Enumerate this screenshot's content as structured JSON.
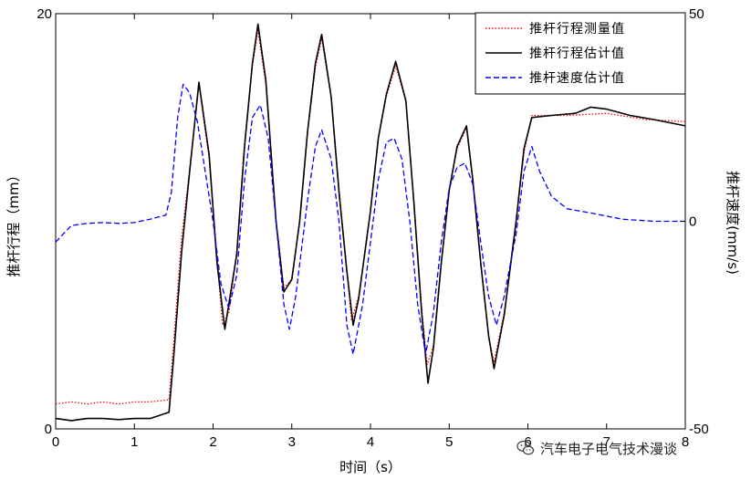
{
  "chart_data": {
    "type": "line",
    "x_label": "时间（s）",
    "y_left_label": "推杆行程（mm）",
    "y_right_label": "推杆速度(mm/s)",
    "x_range": [
      0,
      8
    ],
    "y_left_range": [
      0,
      20
    ],
    "y_right_range": [
      -50,
      50
    ],
    "x_ticks": [
      "0",
      "1",
      "2",
      "3",
      "4",
      "5",
      "6",
      "7",
      "8"
    ],
    "y_left_ticks": [
      "0",
      "20"
    ],
    "y_right_ticks": [
      "-50",
      "0",
      "50"
    ],
    "legend_position": "top-right",
    "grid": false,
    "series": [
      {
        "name": "推杆行程测量值",
        "axis": "left",
        "color": "#ff0000",
        "style": "dotted",
        "points": [
          [
            0,
            1.2
          ],
          [
            0.2,
            1.3
          ],
          [
            0.4,
            1.2
          ],
          [
            0.6,
            1.3
          ],
          [
            0.8,
            1.2
          ],
          [
            1.0,
            1.3
          ],
          [
            1.2,
            1.3
          ],
          [
            1.44,
            1.4
          ],
          [
            1.5,
            4.2
          ],
          [
            1.6,
            9.2
          ],
          [
            1.7,
            12.4
          ],
          [
            1.82,
            16.6
          ],
          [
            1.95,
            13.0
          ],
          [
            2.05,
            8.2
          ],
          [
            2.12,
            5.0
          ],
          [
            2.2,
            5.6
          ],
          [
            2.3,
            8.5
          ],
          [
            2.4,
            13.8
          ],
          [
            2.5,
            17.5
          ],
          [
            2.57,
            19.2
          ],
          [
            2.67,
            16.6
          ],
          [
            2.8,
            10.0
          ],
          [
            2.9,
            6.8
          ],
          [
            3.0,
            7.2
          ],
          [
            3.1,
            10.0
          ],
          [
            3.2,
            14.3
          ],
          [
            3.3,
            17.4
          ],
          [
            3.38,
            18.8
          ],
          [
            3.5,
            16.0
          ],
          [
            3.6,
            11.6
          ],
          [
            3.7,
            7.6
          ],
          [
            3.76,
            5.2
          ],
          [
            3.85,
            6.4
          ],
          [
            4.0,
            10.5
          ],
          [
            4.1,
            14.0
          ],
          [
            4.2,
            16.0
          ],
          [
            4.32,
            17.5
          ],
          [
            4.45,
            15.8
          ],
          [
            4.55,
            11.0
          ],
          [
            4.65,
            5.8
          ],
          [
            4.72,
            3.1
          ],
          [
            4.8,
            4.0
          ],
          [
            4.9,
            8.0
          ],
          [
            5.0,
            11.5
          ],
          [
            5.1,
            13.5
          ],
          [
            5.22,
            14.5
          ],
          [
            5.3,
            12.0
          ],
          [
            5.4,
            8.0
          ],
          [
            5.5,
            4.5
          ],
          [
            5.57,
            3.2
          ],
          [
            5.7,
            5.6
          ],
          [
            5.85,
            10.0
          ],
          [
            5.95,
            13.3
          ],
          [
            6.05,
            15.1
          ],
          [
            6.5,
            15.1
          ],
          [
            7.0,
            15.2
          ],
          [
            7.5,
            14.9
          ],
          [
            8.0,
            14.8
          ]
        ]
      },
      {
        "name": "推杆行程估计值",
        "axis": "left",
        "color": "#000000",
        "style": "solid",
        "points": [
          [
            0,
            0.5
          ],
          [
            0.2,
            0.4
          ],
          [
            0.4,
            0.5
          ],
          [
            0.6,
            0.5
          ],
          [
            0.8,
            0.45
          ],
          [
            1.0,
            0.5
          ],
          [
            1.2,
            0.5
          ],
          [
            1.44,
            0.8
          ],
          [
            1.5,
            3.5
          ],
          [
            1.6,
            8.5
          ],
          [
            1.7,
            12.3
          ],
          [
            1.82,
            16.7
          ],
          [
            1.95,
            13.2
          ],
          [
            2.05,
            8.0
          ],
          [
            2.15,
            4.8
          ],
          [
            2.3,
            8.4
          ],
          [
            2.4,
            13.6
          ],
          [
            2.5,
            17.6
          ],
          [
            2.57,
            19.5
          ],
          [
            2.67,
            16.8
          ],
          [
            2.8,
            10.0
          ],
          [
            2.9,
            6.6
          ],
          [
            3.0,
            7.2
          ],
          [
            3.1,
            10.0
          ],
          [
            3.2,
            14.3
          ],
          [
            3.3,
            17.6
          ],
          [
            3.38,
            19.0
          ],
          [
            3.5,
            16.0
          ],
          [
            3.6,
            11.4
          ],
          [
            3.7,
            7.6
          ],
          [
            3.78,
            5.0
          ],
          [
            3.85,
            6.3
          ],
          [
            4.0,
            10.5
          ],
          [
            4.1,
            14.0
          ],
          [
            4.2,
            16.1
          ],
          [
            4.32,
            17.7
          ],
          [
            4.45,
            15.8
          ],
          [
            4.55,
            11.0
          ],
          [
            4.65,
            5.6
          ],
          [
            4.73,
            2.2
          ],
          [
            4.8,
            3.9
          ],
          [
            4.9,
            8.0
          ],
          [
            5.0,
            11.5
          ],
          [
            5.1,
            13.6
          ],
          [
            5.22,
            14.6
          ],
          [
            5.3,
            12.0
          ],
          [
            5.4,
            8.0
          ],
          [
            5.5,
            4.5
          ],
          [
            5.57,
            2.9
          ],
          [
            5.7,
            5.5
          ],
          [
            5.85,
            10.0
          ],
          [
            5.95,
            13.5
          ],
          [
            6.05,
            15.0
          ],
          [
            6.3,
            15.1
          ],
          [
            6.6,
            15.2
          ],
          [
            6.8,
            15.5
          ],
          [
            7.0,
            15.4
          ],
          [
            7.3,
            15.1
          ],
          [
            7.6,
            14.9
          ],
          [
            8.0,
            14.6
          ]
        ]
      },
      {
        "name": "推杆速度估计值",
        "axis": "right",
        "color": "#0000ff",
        "style": "dashed",
        "points": [
          [
            0,
            -5.0
          ],
          [
            0.1,
            -3.0
          ],
          [
            0.2,
            -1.0
          ],
          [
            0.4,
            -0.5
          ],
          [
            0.6,
            -0.3
          ],
          [
            0.8,
            -0.5
          ],
          [
            1.0,
            -0.3
          ],
          [
            1.2,
            0.5
          ],
          [
            1.4,
            1.5
          ],
          [
            1.47,
            7.0
          ],
          [
            1.55,
            25.0
          ],
          [
            1.62,
            33.0
          ],
          [
            1.7,
            31.0
          ],
          [
            1.8,
            24.0
          ],
          [
            1.9,
            12.0
          ],
          [
            2.0,
            0
          ],
          [
            2.1,
            -15.0
          ],
          [
            2.2,
            -21.0
          ],
          [
            2.3,
            -13.0
          ],
          [
            2.4,
            10.0
          ],
          [
            2.5,
            25.0
          ],
          [
            2.6,
            28.0
          ],
          [
            2.7,
            20.0
          ],
          [
            2.8,
            0
          ],
          [
            2.9,
            -20.0
          ],
          [
            2.97,
            -26.0
          ],
          [
            3.05,
            -18.0
          ],
          [
            3.2,
            5.0
          ],
          [
            3.3,
            18.0
          ],
          [
            3.38,
            22.0
          ],
          [
            3.5,
            15.0
          ],
          [
            3.6,
            0
          ],
          [
            3.7,
            -25.0
          ],
          [
            3.78,
            -32.0
          ],
          [
            3.9,
            -20.0
          ],
          [
            4.0,
            -5.0
          ],
          [
            4.1,
            10.0
          ],
          [
            4.2,
            19.0
          ],
          [
            4.3,
            20.0
          ],
          [
            4.4,
            15.0
          ],
          [
            4.5,
            0
          ],
          [
            4.6,
            -20.0
          ],
          [
            4.7,
            -32.0
          ],
          [
            4.8,
            -22.0
          ],
          [
            4.9,
            -5.0
          ],
          [
            5.0,
            8.0
          ],
          [
            5.1,
            13.0
          ],
          [
            5.2,
            14.0
          ],
          [
            5.3,
            9.0
          ],
          [
            5.4,
            -5.0
          ],
          [
            5.5,
            -18.0
          ],
          [
            5.6,
            -25.0
          ],
          [
            5.7,
            -18.0
          ],
          [
            5.85,
            -3.0
          ],
          [
            5.95,
            12.0
          ],
          [
            6.05,
            18.0
          ],
          [
            6.15,
            12.0
          ],
          [
            6.3,
            6.0
          ],
          [
            6.5,
            3.0
          ],
          [
            6.8,
            2.0
          ],
          [
            7.2,
            0.5
          ],
          [
            7.6,
            0
          ],
          [
            8.0,
            0
          ]
        ]
      }
    ]
  },
  "watermark": {
    "icon": "wechat-icon",
    "text": "汽车电子电气技术漫谈"
  }
}
